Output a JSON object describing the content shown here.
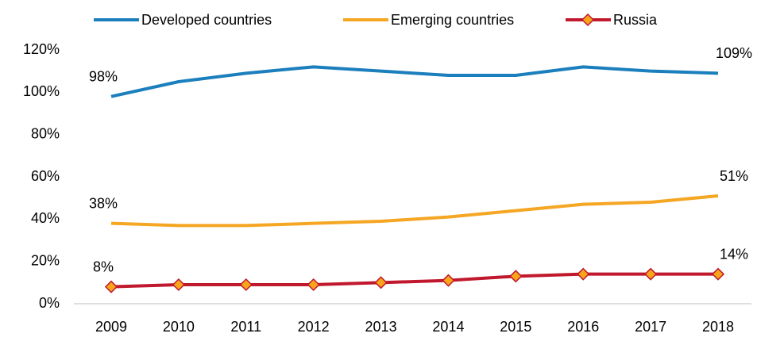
{
  "chart_data": {
    "type": "line",
    "categories": [
      "2009",
      "2010",
      "2011",
      "2012",
      "2013",
      "2014",
      "2015",
      "2016",
      "2017",
      "2018"
    ],
    "series": [
      {
        "name": "Developed countries",
        "color": "#1c7fbd",
        "values": [
          98,
          105,
          109,
          112,
          110,
          108,
          108,
          112,
          110,
          109
        ],
        "value_labels": [
          "98%",
          null,
          null,
          null,
          null,
          null,
          null,
          null,
          null,
          "109%"
        ]
      },
      {
        "name": "Emerging countries",
        "color": "#f5a623",
        "values": [
          38,
          37,
          37,
          38,
          39,
          41,
          44,
          47,
          48,
          51
        ],
        "value_labels": [
          "38%",
          null,
          null,
          null,
          null,
          null,
          null,
          null,
          null,
          "51%"
        ]
      },
      {
        "name": "Russia",
        "color": "#c0182c",
        "marker": "diamond",
        "marker_color": "#f8a51c",
        "values": [
          8,
          9,
          9,
          9,
          10,
          11,
          13,
          14,
          14,
          14
        ],
        "value_labels": [
          "8%",
          null,
          null,
          null,
          null,
          null,
          null,
          null,
          null,
          "14%"
        ]
      }
    ],
    "ylim": [
      0,
      120
    ],
    "yticks": [
      {
        "value": 0,
        "label": "0%"
      },
      {
        "value": 20,
        "label": "20%"
      },
      {
        "value": 40,
        "label": "40%"
      },
      {
        "value": 60,
        "label": "60%"
      },
      {
        "value": 80,
        "label": "80%"
      },
      {
        "value": 100,
        "label": "100%"
      },
      {
        "value": 120,
        "label": "120%"
      }
    ],
    "grid": false,
    "legend": "top"
  }
}
